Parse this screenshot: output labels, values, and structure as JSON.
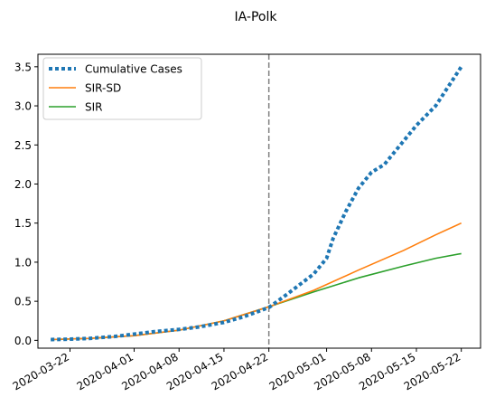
{
  "chart_data": {
    "type": "line",
    "title": "IA-Polk",
    "xlabel": "",
    "ylabel": "",
    "x_type": "date",
    "xlim": [
      "2020-03-17",
      "2020-05-25"
    ],
    "ylim": [
      -0.1,
      3.66
    ],
    "x_tick_labels": [
      "2020-03-22",
      "2020-04-01",
      "2020-04-08",
      "2020-04-15",
      "2020-04-22",
      "2020-05-01",
      "2020-05-08",
      "2020-05-15",
      "2020-05-22"
    ],
    "y_tick_values": [
      0.0,
      0.5,
      1.0,
      1.5,
      2.0,
      2.5,
      3.0,
      3.5
    ],
    "y_tick_labels": [
      "0.0",
      "0.5",
      "1.0",
      "1.5",
      "2.0",
      "2.5",
      "3.0",
      "3.5"
    ],
    "vline": {
      "x": "2020-04-22",
      "style": "dashed",
      "color": "#7f7f7f"
    },
    "legend": {
      "placement": "top-left"
    },
    "grid": false,
    "series": [
      {
        "name": "Cumulative Cases",
        "style": "dotted",
        "color": "#1f77b4",
        "points": [
          [
            "2020-03-19",
            0.01
          ],
          [
            "2020-03-22",
            0.015
          ],
          [
            "2020-03-25",
            0.025
          ],
          [
            "2020-03-29",
            0.05
          ],
          [
            "2020-04-01",
            0.08
          ],
          [
            "2020-04-04",
            0.11
          ],
          [
            "2020-04-08",
            0.14
          ],
          [
            "2020-04-11",
            0.17
          ],
          [
            "2020-04-15",
            0.23
          ],
          [
            "2020-04-18",
            0.3
          ],
          [
            "2020-04-22",
            0.42
          ],
          [
            "2020-04-25",
            0.6
          ],
          [
            "2020-04-29",
            0.85
          ],
          [
            "2020-05-01",
            1.05
          ],
          [
            "2020-05-02",
            1.3
          ],
          [
            "2020-05-04",
            1.65
          ],
          [
            "2020-05-06",
            1.95
          ],
          [
            "2020-05-08",
            2.15
          ],
          [
            "2020-05-10",
            2.25
          ],
          [
            "2020-05-13",
            2.55
          ],
          [
            "2020-05-15",
            2.75
          ],
          [
            "2020-05-18",
            3.0
          ],
          [
            "2020-05-20",
            3.25
          ],
          [
            "2020-05-22",
            3.5
          ]
        ]
      },
      {
        "name": "SIR-SD",
        "style": "solid",
        "color": "#ff7f0e",
        "points": [
          [
            "2020-03-19",
            0.01
          ],
          [
            "2020-03-25",
            0.025
          ],
          [
            "2020-04-01",
            0.06
          ],
          [
            "2020-04-08",
            0.13
          ],
          [
            "2020-04-15",
            0.25
          ],
          [
            "2020-04-22",
            0.43
          ],
          [
            "2020-04-29",
            0.64
          ],
          [
            "2020-05-06",
            0.9
          ],
          [
            "2020-05-13",
            1.15
          ],
          [
            "2020-05-18",
            1.35
          ],
          [
            "2020-05-22",
            1.5
          ]
        ]
      },
      {
        "name": "SIR",
        "style": "solid",
        "color": "#2ca02c",
        "points": [
          [
            "2020-03-19",
            0.01
          ],
          [
            "2020-03-25",
            0.025
          ],
          [
            "2020-04-01",
            0.06
          ],
          [
            "2020-04-08",
            0.13
          ],
          [
            "2020-04-15",
            0.25
          ],
          [
            "2020-04-22",
            0.43
          ],
          [
            "2020-04-29",
            0.62
          ],
          [
            "2020-05-06",
            0.8
          ],
          [
            "2020-05-13",
            0.95
          ],
          [
            "2020-05-18",
            1.05
          ],
          [
            "2020-05-22",
            1.11
          ]
        ]
      }
    ]
  }
}
